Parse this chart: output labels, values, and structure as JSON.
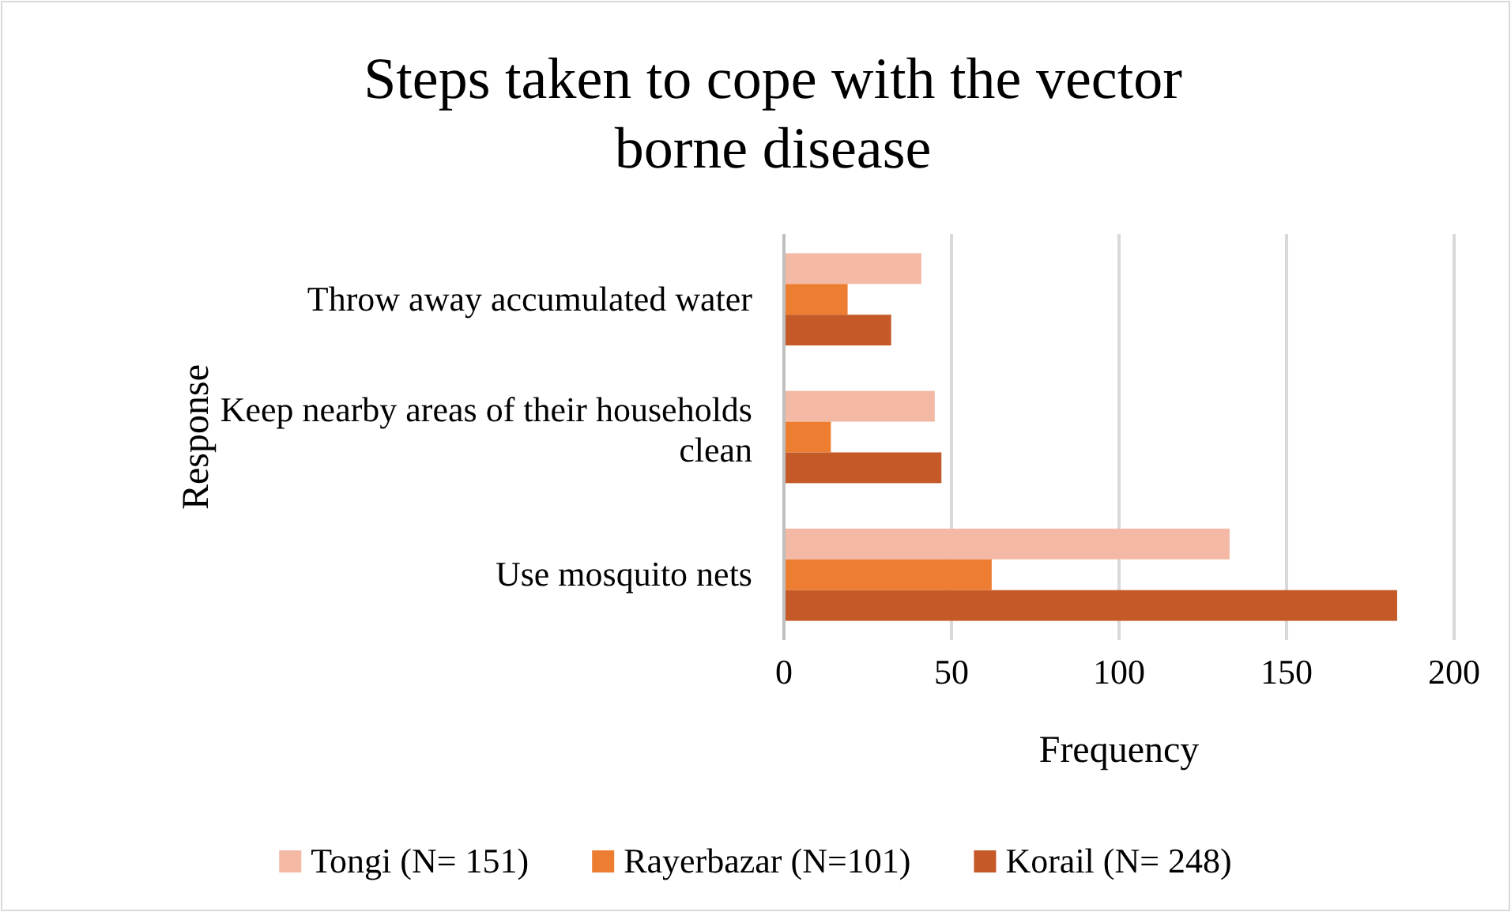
{
  "chart_data": {
    "type": "bar",
    "orientation": "horizontal",
    "title": "Steps taken to cope with the vector borne disease",
    "xlabel": "Frequency",
    "ylabel": "Response",
    "categories": [
      "Throw away accumulated water",
      "Keep nearby areas of their households clean",
      "Use mosquito nets"
    ],
    "series": [
      {
        "name": "Tongi (N= 151)",
        "color": "#f4b9a4",
        "values": [
          41,
          45,
          133
        ]
      },
      {
        "name": "Rayerbazar (N=101)",
        "color": "#ed7d31",
        "values": [
          19,
          14,
          62
        ]
      },
      {
        "name": "Korail (N= 248)",
        "color": "#c55a28",
        "values": [
          32,
          47,
          183
        ]
      }
    ],
    "xlim": [
      0,
      200
    ],
    "xticks": [
      0,
      50,
      100,
      150,
      200
    ],
    "grid": "x",
    "legend": "bottom"
  }
}
